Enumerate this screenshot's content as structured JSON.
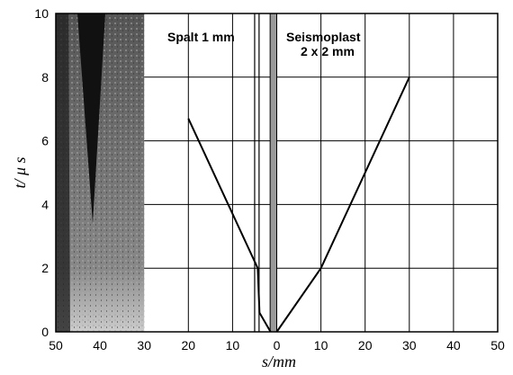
{
  "chart_data": {
    "type": "line",
    "xlabel": "s/mm",
    "ylabel": "t/ μ s",
    "annotations": [
      {
        "text": "Spalt 1 mm"
      },
      {
        "text": "Seismoplast\n2 x 2 mm"
      }
    ],
    "xlim": [
      -50,
      50
    ],
    "ylim": [
      0,
      10
    ],
    "xticks": [
      {
        "value": -50,
        "label": "50"
      },
      {
        "value": -40,
        "label": "40"
      },
      {
        "value": -30,
        "label": "30"
      },
      {
        "value": -20,
        "label": "20"
      },
      {
        "value": -10,
        "label": "10"
      },
      0,
      10,
      20,
      30,
      40,
      50
    ],
    "yticks": [
      0,
      2,
      4,
      6,
      8,
      10
    ],
    "grid": true,
    "spalt_x": [
      -5,
      -4
    ],
    "seismoplast_x": [
      -1.5,
      0
    ],
    "series": [
      {
        "color": "#000000",
        "x": [
          -20,
          -4.3,
          -3.9,
          -1.4
        ],
        "values": [
          6.7,
          2.0,
          0.6,
          0
        ]
      },
      {
        "color": "#000000",
        "x": [
          0,
          10,
          30
        ],
        "values": [
          0,
          2,
          8
        ]
      }
    ]
  }
}
